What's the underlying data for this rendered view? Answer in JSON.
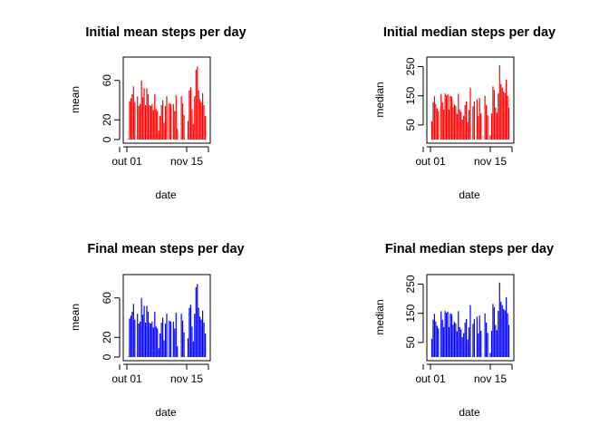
{
  "chart_data": [
    {
      "type": "bar",
      "title": "Initial mean steps per day",
      "xlabel": "date",
      "ylabel": "mean",
      "color": "#ff0000",
      "x_tick_labels": [
        "out 01",
        "nov 15"
      ],
      "y_tick_labels": [
        "0",
        "20",
        "60"
      ],
      "ylim": [
        0,
        80
      ],
      "x_range": [
        "2012-10-01",
        "2012-11-30"
      ],
      "dates": [
        "2012-10-02",
        "2012-10-03",
        "2012-10-04",
        "2012-10-05",
        "2012-10-06",
        "2012-10-07",
        "2012-10-08",
        "2012-10-09",
        "2012-10-10",
        "2012-10-11",
        "2012-10-12",
        "2012-10-13",
        "2012-10-14",
        "2012-10-15",
        "2012-10-16",
        "2012-10-17",
        "2012-10-18",
        "2012-10-19",
        "2012-10-20",
        "2012-10-21",
        "2012-10-22",
        "2012-10-23",
        "2012-10-24",
        "2012-10-25",
        "2012-10-26",
        "2012-10-27",
        "2012-10-28",
        "2012-10-29",
        "2012-10-30",
        "2012-10-31",
        "2012-11-01",
        "2012-11-02",
        "2012-11-03",
        "2012-11-04",
        "2012-11-05",
        "2012-11-06",
        "2012-11-07",
        "2012-11-08",
        "2012-11-09",
        "2012-11-10",
        "2012-11-11",
        "2012-11-12",
        "2012-11-13",
        "2012-11-14",
        "2012-11-15",
        "2012-11-16",
        "2012-11-17",
        "2012-11-18",
        "2012-11-19",
        "2012-11-20",
        "2012-11-21",
        "2012-11-22",
        "2012-11-23",
        "2012-11-24",
        "2012-11-25",
        "2012-11-26",
        "2012-11-27",
        "2012-11-28",
        "2012-11-29"
      ],
      "values": [
        0.4,
        39,
        42,
        46,
        54,
        38,
        0,
        44,
        34,
        36,
        60,
        43,
        52,
        35,
        52,
        46,
        35,
        34,
        36,
        30,
        46,
        31,
        29,
        9,
        24,
        35,
        40,
        17,
        34,
        44,
        0,
        37,
        36,
        0,
        36,
        29,
        45,
        11,
        0,
        0,
        44,
        37,
        25,
        0,
        0.1,
        19,
        50,
        53,
        31,
        16,
        44,
        71,
        74,
        50,
        41,
        38,
        47,
        35,
        24
      ]
    },
    {
      "type": "bar",
      "title": "Initial median steps per day",
      "xlabel": "date",
      "ylabel": "median",
      "color": "#ff0000",
      "x_tick_labels": [
        "out 01",
        "nov 15"
      ],
      "y_tick_labels": [
        "50",
        "150",
        "250"
      ],
      "ylim": [
        0,
        270
      ],
      "x_range": [
        "2012-10-01",
        "2012-11-30"
      ],
      "dates": [
        "2012-10-02",
        "2012-10-03",
        "2012-10-04",
        "2012-10-05",
        "2012-10-06",
        "2012-10-07",
        "2012-10-08",
        "2012-10-09",
        "2012-10-10",
        "2012-10-11",
        "2012-10-12",
        "2012-10-13",
        "2012-10-14",
        "2012-10-15",
        "2012-10-16",
        "2012-10-17",
        "2012-10-18",
        "2012-10-19",
        "2012-10-20",
        "2012-10-21",
        "2012-10-22",
        "2012-10-23",
        "2012-10-24",
        "2012-10-25",
        "2012-10-26",
        "2012-10-27",
        "2012-10-28",
        "2012-10-29",
        "2012-10-30",
        "2012-10-31",
        "2012-11-01",
        "2012-11-02",
        "2012-11-03",
        "2012-11-04",
        "2012-11-05",
        "2012-11-06",
        "2012-11-07",
        "2012-11-08",
        "2012-11-09",
        "2012-11-10",
        "2012-11-11",
        "2012-11-12",
        "2012-11-13",
        "2012-11-14",
        "2012-11-15",
        "2012-11-16",
        "2012-11-17",
        "2012-11-18",
        "2012-11-19",
        "2012-11-20",
        "2012-11-21",
        "2012-11-22",
        "2012-11-23",
        "2012-11-24",
        "2012-11-25",
        "2012-11-26",
        "2012-11-27",
        "2012-11-28",
        "2012-11-29"
      ],
      "values": [
        63,
        128,
        148,
        122,
        107,
        98,
        0,
        157,
        128,
        103,
        158,
        152,
        155,
        103,
        150,
        147,
        110,
        120,
        116,
        88,
        157,
        103,
        95,
        68,
        82,
        118,
        130,
        60,
        102,
        178,
        0,
        114,
        130,
        0,
        138,
        81,
        142,
        90,
        0,
        0,
        150,
        118,
        83,
        0,
        14,
        90,
        182,
        170,
        110,
        92,
        158,
        255,
        190,
        178,
        165,
        160,
        205,
        150,
        110
      ]
    },
    {
      "type": "bar",
      "title": "Final mean steps per day",
      "xlabel": "date",
      "ylabel": "mean",
      "color": "#0000ff",
      "x_tick_labels": [
        "out 01",
        "nov 15"
      ],
      "y_tick_labels": [
        "0",
        "20",
        "60"
      ],
      "ylim": [
        0,
        80
      ],
      "x_range": [
        "2012-10-01",
        "2012-11-30"
      ],
      "dates": [
        "2012-10-02",
        "2012-10-03",
        "2012-10-04",
        "2012-10-05",
        "2012-10-06",
        "2012-10-07",
        "2012-10-08",
        "2012-10-09",
        "2012-10-10",
        "2012-10-11",
        "2012-10-12",
        "2012-10-13",
        "2012-10-14",
        "2012-10-15",
        "2012-10-16",
        "2012-10-17",
        "2012-10-18",
        "2012-10-19",
        "2012-10-20",
        "2012-10-21",
        "2012-10-22",
        "2012-10-23",
        "2012-10-24",
        "2012-10-25",
        "2012-10-26",
        "2012-10-27",
        "2012-10-28",
        "2012-10-29",
        "2012-10-30",
        "2012-10-31",
        "2012-11-01",
        "2012-11-02",
        "2012-11-03",
        "2012-11-04",
        "2012-11-05",
        "2012-11-06",
        "2012-11-07",
        "2012-11-08",
        "2012-11-09",
        "2012-11-10",
        "2012-11-11",
        "2012-11-12",
        "2012-11-13",
        "2012-11-14",
        "2012-11-15",
        "2012-11-16",
        "2012-11-17",
        "2012-11-18",
        "2012-11-19",
        "2012-11-20",
        "2012-11-21",
        "2012-11-22",
        "2012-11-23",
        "2012-11-24",
        "2012-11-25",
        "2012-11-26",
        "2012-11-27",
        "2012-11-28",
        "2012-11-29"
      ],
      "values": [
        0.4,
        39,
        42,
        46,
        54,
        38,
        0,
        44,
        34,
        36,
        60,
        43,
        52,
        35,
        52,
        46,
        35,
        34,
        36,
        30,
        46,
        31,
        29,
        9,
        24,
        35,
        40,
        17,
        34,
        44,
        0,
        37,
        36,
        0,
        36,
        29,
        45,
        11,
        0,
        0,
        44,
        37,
        25,
        0,
        0.1,
        19,
        50,
        53,
        31,
        16,
        44,
        71,
        74,
        50,
        41,
        38,
        47,
        35,
        24
      ]
    },
    {
      "type": "bar",
      "title": "Final median steps per day",
      "xlabel": "date",
      "ylabel": "median",
      "color": "#0000ff",
      "x_tick_labels": [
        "out 01",
        "nov 15"
      ],
      "y_tick_labels": [
        "50",
        "150",
        "250"
      ],
      "ylim": [
        0,
        270
      ],
      "x_range": [
        "2012-10-01",
        "2012-11-30"
      ],
      "dates": [
        "2012-10-02",
        "2012-10-03",
        "2012-10-04",
        "2012-10-05",
        "2012-10-06",
        "2012-10-07",
        "2012-10-08",
        "2012-10-09",
        "2012-10-10",
        "2012-10-11",
        "2012-10-12",
        "2012-10-13",
        "2012-10-14",
        "2012-10-15",
        "2012-10-16",
        "2012-10-17",
        "2012-10-18",
        "2012-10-19",
        "2012-10-20",
        "2012-10-21",
        "2012-10-22",
        "2012-10-23",
        "2012-10-24",
        "2012-10-25",
        "2012-10-26",
        "2012-10-27",
        "2012-10-28",
        "2012-10-29",
        "2012-10-30",
        "2012-10-31",
        "2012-11-01",
        "2012-11-02",
        "2012-11-03",
        "2012-11-04",
        "2012-11-05",
        "2012-11-06",
        "2012-11-07",
        "2012-11-08",
        "2012-11-09",
        "2012-11-10",
        "2012-11-11",
        "2012-11-12",
        "2012-11-13",
        "2012-11-14",
        "2012-11-15",
        "2012-11-16",
        "2012-11-17",
        "2012-11-18",
        "2012-11-19",
        "2012-11-20",
        "2012-11-21",
        "2012-11-22",
        "2012-11-23",
        "2012-11-24",
        "2012-11-25",
        "2012-11-26",
        "2012-11-27",
        "2012-11-28",
        "2012-11-29"
      ],
      "values": [
        63,
        128,
        148,
        122,
        107,
        98,
        0,
        157,
        128,
        103,
        158,
        152,
        155,
        103,
        150,
        147,
        110,
        120,
        116,
        88,
        157,
        103,
        95,
        68,
        82,
        118,
        130,
        60,
        102,
        178,
        0,
        114,
        130,
        0,
        138,
        81,
        142,
        90,
        0,
        0,
        150,
        118,
        83,
        0,
        14,
        90,
        182,
        170,
        110,
        92,
        158,
        255,
        190,
        178,
        165,
        160,
        205,
        150,
        110
      ]
    }
  ]
}
